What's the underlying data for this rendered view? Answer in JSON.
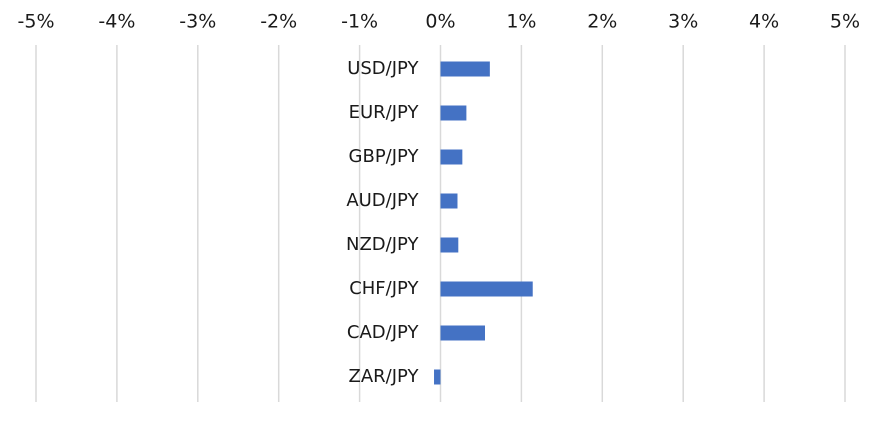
{
  "chart_data": {
    "type": "bar",
    "orientation": "horizontal",
    "categories": [
      "USD/JPY",
      "EUR/JPY",
      "GBP/JPY",
      "AUD/JPY",
      "NZD/JPY",
      "CHF/JPY",
      "CAD/JPY",
      "ZAR/JPY"
    ],
    "series": [
      {
        "values": [
          0.61,
          0.32,
          0.27,
          0.21,
          0.22,
          1.14,
          0.55,
          -0.08
        ],
        "color": "#4472c4"
      }
    ],
    "xlim": [
      -5,
      5
    ],
    "x_ticks": [
      -5,
      -4,
      -3,
      -2,
      -1,
      0,
      1,
      2,
      3,
      4,
      5
    ],
    "x_tick_labels": [
      "-5%",
      "-4%",
      "-3%",
      "-2%",
      "-1%",
      "0%",
      "1%",
      "2%",
      "3%",
      "4%",
      "5%"
    ],
    "x_axis_position": "top",
    "category_labels_position": "left-of-zero",
    "grid": true,
    "grid_color": "#d9d9d9",
    "legend": "none"
  }
}
